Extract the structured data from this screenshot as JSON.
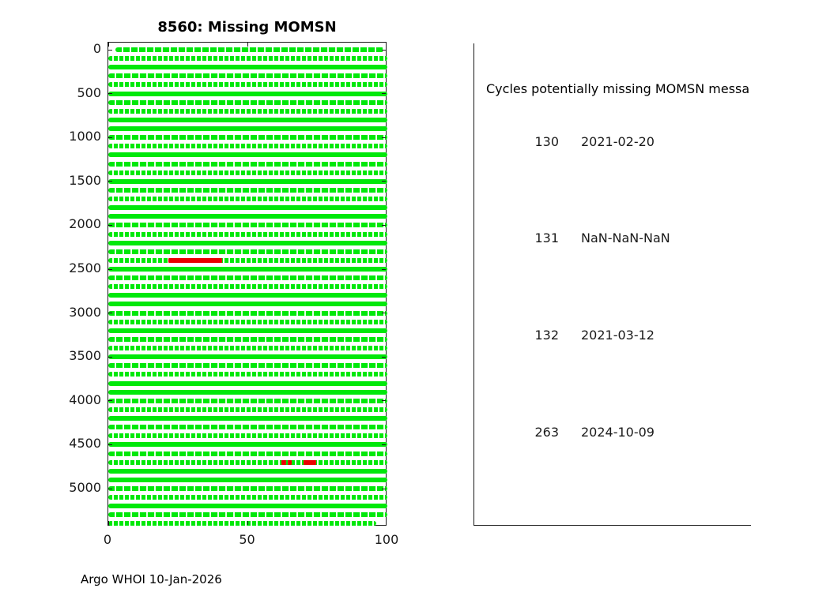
{
  "figure": {
    "title": "8560: Missing MOMSN",
    "caption": "Argo WHOI 10-Jan-2026"
  },
  "chart_data": {
    "type": "scatter",
    "title": "8560: Missing MOMSN",
    "xlabel": "",
    "ylabel": "",
    "xlim": [
      0,
      100
    ],
    "ylim": [
      0,
      5450
    ],
    "y_axis_inverted": true,
    "grid": false,
    "x_ticks": [
      0,
      50,
      100
    ],
    "y_ticks": [
      0,
      500,
      1000,
      1500,
      2000,
      2500,
      3000,
      3500,
      4000,
      4500,
      5000
    ],
    "description": "Each green horizontal row represents 100 consecutive MOMSN values (x = MOMSN mod 100, y = 100 * floor(MOMSN/100)); green dots = received, red = potentially missing MOMSN",
    "green_rows": {
      "row_y_start": 0,
      "row_y_step": 100,
      "row_count": 55,
      "default_x_range": [
        0,
        100
      ],
      "first_row_x_range": [
        2.5,
        99
      ],
      "last_row_x_range": [
        0,
        96
      ]
    },
    "red_segments": [
      {
        "row_y": 2400,
        "x_start": 21.5,
        "x_end": 40.8
      },
      {
        "row_y": 4700,
        "x_start": 62.0,
        "x_end": 63.7
      },
      {
        "row_y": 4700,
        "x_start": 64.2,
        "x_end": 65.7
      },
      {
        "row_y": 4700,
        "x_start": 70.0,
        "x_end": 74.5
      }
    ],
    "colors": {
      "present": "#00e80a",
      "missing": "#ea0000",
      "axis": "#1a1a1a"
    }
  },
  "panel": {
    "title": "Cycles potentially missing MOMSN messa",
    "rows": [
      {
        "cycle": "130",
        "date": "2021-02-20"
      },
      {
        "cycle": "131",
        "date": "NaN-NaN-NaN"
      },
      {
        "cycle": "132",
        "date": "2021-03-12"
      },
      {
        "cycle": "263",
        "date": "2024-10-09"
      }
    ]
  }
}
